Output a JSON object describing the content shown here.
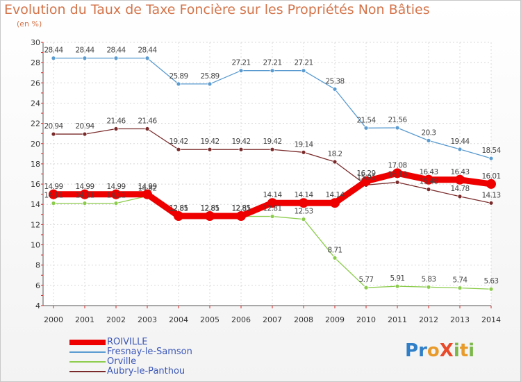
{
  "header": {
    "title": "Evolution du Taux de Taxe Foncière sur les Propriétés Non Bâties",
    "subtitle": "(en %)"
  },
  "brand": {
    "logo_text": "ProXiti",
    "letter_colors": [
      "#2f7fc8",
      "#2f7fc8",
      "#e89a2a",
      "#e84a2a",
      "#7cb848",
      "#e89a2a",
      "#7cb848"
    ]
  },
  "chart_data": {
    "type": "line",
    "title": "Evolution du Taux de Taxe Foncière sur les Propriétés Non Bâties",
    "ylabel": "(en %)",
    "xlabel": "",
    "categories": [
      "2000",
      "2001",
      "2002",
      "2003",
      "2004",
      "2005",
      "2006",
      "2007",
      "2008",
      "2009",
      "2010",
      "2011",
      "2012",
      "2013",
      "2014"
    ],
    "ylim": [
      4,
      30
    ],
    "yticks": [
      4,
      6,
      8,
      10,
      12,
      14,
      16,
      18,
      20,
      22,
      24,
      26,
      28,
      30
    ],
    "grid": true,
    "legend_position": "bottom-left",
    "series": [
      {
        "name": "ROIVILLE",
        "color": "#ee0000",
        "values": [
          14.99,
          14.99,
          14.99,
          14.99,
          12.85,
          12.85,
          12.85,
          14.14,
          14.14,
          14.14,
          16.29,
          17.08,
          16.43,
          16.43,
          16.01
        ],
        "labels": [
          "14.99",
          "14.99",
          "14.99",
          "14.99",
          "12.85",
          "12.85",
          "12.85",
          "14.14",
          "14.14",
          "14.14",
          "16.29",
          "17.08",
          "16.43",
          "16.43",
          "16.01"
        ]
      },
      {
        "name": "Fresnay-le-Samson",
        "color": "#5a9bd0",
        "values": [
          28.44,
          28.44,
          28.44,
          28.44,
          25.89,
          25.89,
          27.21,
          27.21,
          27.21,
          25.38,
          21.54,
          21.56,
          20.3,
          19.44,
          18.54
        ],
        "labels": [
          "28.44",
          "28.44",
          "28.44",
          "28.44",
          "25.89",
          "25.89",
          "27.21",
          "27.21",
          "27.21",
          "25.38",
          "21.54",
          "21.56",
          "20.3",
          "19.44",
          "18.54"
        ]
      },
      {
        "name": "Orville",
        "color": "#8ccc4c",
        "values": [
          14.11,
          14.11,
          14.11,
          14.82,
          12.81,
          12.81,
          12.81,
          12.81,
          12.53,
          8.71,
          5.77,
          5.91,
          5.83,
          5.74,
          5.63
        ],
        "labels": [
          "14.11",
          "14.11",
          "14.11",
          "14.82",
          "12.81",
          "12.81",
          "12.81",
          "12.81",
          "12.53",
          "8.71",
          "5.77",
          "5.91",
          "5.83",
          "5.74",
          "5.63"
        ]
      },
      {
        "name": "Aubry-le-Panthou",
        "color": "#7a2a2a",
        "values": [
          20.94,
          20.94,
          21.46,
          21.46,
          19.42,
          19.42,
          19.42,
          19.42,
          19.14,
          18.2,
          15.91,
          16.18,
          15.48,
          14.78,
          14.13
        ],
        "labels": [
          "20.94",
          "20.94",
          "21.46",
          "21.46",
          "19.42",
          "19.42",
          "19.42",
          "19.42",
          "19.14",
          "18.2",
          "15.91",
          "16.18",
          "15.48",
          "14.78",
          "14.13"
        ]
      }
    ]
  }
}
